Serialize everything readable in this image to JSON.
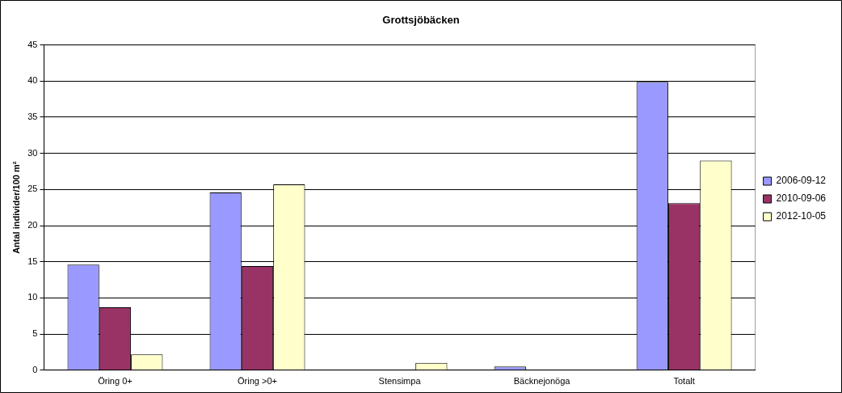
{
  "chart_data": {
    "type": "bar",
    "title": "Grottsjöbäcken",
    "ylabel": "Antal individer/100 m²",
    "categories": [
      "Öring 0+",
      "Öring >0+",
      "Stensimpa",
      "Bäcknejonöga",
      "Totalt"
    ],
    "series": [
      {
        "name": "2006-09-12",
        "color": "#9999ff",
        "values": [
          14.6,
          24.6,
          0,
          0.5,
          39.9
        ]
      },
      {
        "name": "2010-09-06",
        "color": "#993366",
        "values": [
          8.7,
          14.4,
          0,
          0,
          23.1
        ]
      },
      {
        "name": "2012-10-05",
        "color": "#ffffcc",
        "values": [
          2.2,
          25.7,
          1.0,
          0,
          29.0
        ]
      }
    ],
    "ylim": [
      0,
      45
    ],
    "yticks": [
      0,
      5,
      10,
      15,
      20,
      25,
      30,
      35,
      40,
      45
    ],
    "grid": "y",
    "legend": "right"
  }
}
